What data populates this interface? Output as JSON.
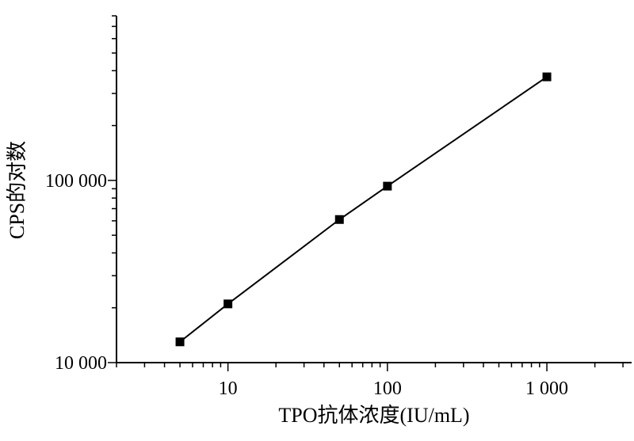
{
  "chart_data": {
    "type": "line",
    "xlabel": "TPO抗体浓度(IU/mL)",
    "ylabel": "CPS的对数",
    "x_scale": "log",
    "y_scale": "log",
    "xlim": [
      2,
      3400
    ],
    "ylim": [
      10000,
      800000
    ],
    "x_tick_labels": [
      {
        "value": 10,
        "label": "10"
      },
      {
        "value": 100,
        "label": "100"
      },
      {
        "value": 1000,
        "label": "1 000"
      }
    ],
    "y_tick_labels": [
      {
        "value": 10000,
        "label": "10 000"
      },
      {
        "value": 100000,
        "label": "100 000"
      }
    ],
    "grid": false,
    "legend": false,
    "series": [
      {
        "marker": "square",
        "color": "#000000",
        "x": [
          5,
          10,
          50,
          100,
          1000
        ],
        "y": [
          13000,
          21000,
          61000,
          93000,
          370000
        ]
      }
    ]
  }
}
